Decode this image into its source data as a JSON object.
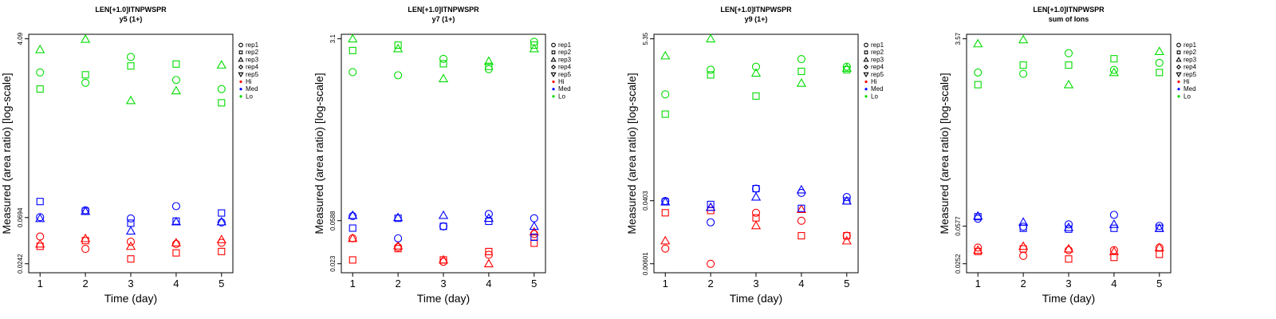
{
  "colors": {
    "Hi": "#ff0000",
    "Med": "#0000ff",
    "Lo": "#00dd00"
  },
  "chart_data": [
    {
      "type": "scatter",
      "title": "LEN[+1.0]ITNPWSPR",
      "subtitle": "y5 (1+)",
      "xlabel": "Time (day)",
      "ylabel": "Measured (area ratio) [log-scale]",
      "xlim": [
        1,
        5
      ],
      "ylim": [
        0.0242,
        4.09
      ],
      "log_y": true,
      "x_ticks": [
        "1",
        "2",
        "3",
        "4",
        "5"
      ],
      "y_ticks": [
        0.0242,
        0.0694,
        4.09
      ],
      "y_tick_labels": [
        "0.0242",
        "0.0694",
        "4.09"
      ],
      "legend": [
        "rep1",
        "rep2",
        "rep3",
        "rep4",
        "rep5",
        "Hi",
        "Med",
        "Lo"
      ],
      "legend_position": "right",
      "series": [
        {
          "name": "rep1",
          "shape": "circle",
          "group": "Hi",
          "x": [
            1,
            2,
            3,
            4,
            5
          ],
          "y": [
            0.045,
            0.034,
            0.04,
            0.038,
            0.039
          ]
        },
        {
          "name": "rep2",
          "shape": "square",
          "group": "Hi",
          "x": [
            1,
            2,
            3,
            4,
            5
          ],
          "y": [
            0.036,
            0.041,
            0.027,
            0.031,
            0.032
          ]
        },
        {
          "name": "rep3",
          "shape": "triangle",
          "group": "Hi",
          "x": [
            1,
            2,
            3,
            4,
            5
          ],
          "y": [
            0.038,
            0.043,
            0.036,
            0.039,
            0.042
          ]
        },
        {
          "name": "rep1",
          "shape": "circle",
          "group": "Med",
          "x": [
            1,
            2,
            3,
            4,
            5
          ],
          "y": [
            0.07,
            0.082,
            0.068,
            0.09,
            0.062
          ]
        },
        {
          "name": "rep2",
          "shape": "square",
          "group": "Med",
          "x": [
            1,
            2,
            3,
            4,
            5
          ],
          "y": [
            0.1,
            0.08,
            0.061,
            0.064,
            0.077
          ]
        },
        {
          "name": "rep3",
          "shape": "triangle",
          "group": "Med",
          "x": [
            1,
            2,
            3,
            4,
            5
          ],
          "y": [
            0.068,
            0.08,
            0.051,
            0.063,
            0.063
          ]
        },
        {
          "name": "rep1",
          "shape": "circle",
          "group": "Lo",
          "x": [
            1,
            2,
            3,
            4,
            5
          ],
          "y": [
            1.9,
            1.5,
            2.7,
            1.6,
            1.3
          ]
        },
        {
          "name": "rep2",
          "shape": "square",
          "group": "Lo",
          "x": [
            1,
            2,
            3,
            4,
            5
          ],
          "y": [
            1.3,
            1.8,
            2.2,
            2.3,
            0.95
          ]
        },
        {
          "name": "rep3",
          "shape": "triangle",
          "group": "Lo",
          "x": [
            1,
            2,
            3,
            4,
            5
          ],
          "y": [
            3.2,
            4.05,
            1.0,
            1.25,
            2.25
          ]
        }
      ]
    },
    {
      "type": "scatter",
      "title": "LEN[+1.0]ITNPWSPR",
      "subtitle": "y7 (1+)",
      "xlabel": "Time (day)",
      "ylabel": "Measured (area ratio) [log-scale]",
      "xlim": [
        1,
        5
      ],
      "ylim": [
        0.023,
        3.1
      ],
      "log_y": true,
      "x_ticks": [
        "1",
        "2",
        "3",
        "4",
        "5"
      ],
      "y_ticks": [
        0.023,
        0.0588,
        3.1
      ],
      "y_tick_labels": [
        "0.023",
        "0.0588",
        "3.1"
      ],
      "legend": [
        "rep1",
        "rep2",
        "rep3",
        "rep4",
        "rep5",
        "Hi",
        "Med",
        "Lo"
      ],
      "legend_position": "right",
      "series": [
        {
          "name": "rep1",
          "shape": "circle",
          "group": "Hi",
          "x": [
            1,
            2,
            3,
            4,
            5
          ],
          "y": [
            0.04,
            0.033,
            0.024,
            0.028,
            0.044
          ]
        },
        {
          "name": "rep2",
          "shape": "square",
          "group": "Hi",
          "x": [
            1,
            2,
            3,
            4,
            5
          ],
          "y": [
            0.025,
            0.032,
            0.025,
            0.03,
            0.036
          ]
        },
        {
          "name": "rep3",
          "shape": "triangle",
          "group": "Hi",
          "x": [
            1,
            2,
            3,
            4,
            5
          ],
          "y": [
            0.04,
            0.034,
            0.025,
            0.023,
            0.046
          ]
        },
        {
          "name": "rep1",
          "shape": "circle",
          "group": "Med",
          "x": [
            1,
            2,
            3,
            4,
            5
          ],
          "y": [
            0.065,
            0.04,
            0.052,
            0.068,
            0.062
          ]
        },
        {
          "name": "rep2",
          "shape": "square",
          "group": "Med",
          "x": [
            1,
            2,
            3,
            4,
            5
          ],
          "y": [
            0.05,
            0.062,
            0.052,
            0.058,
            0.041
          ]
        },
        {
          "name": "rep3",
          "shape": "triangle",
          "group": "Med",
          "x": [
            1,
            2,
            3,
            4,
            5
          ],
          "y": [
            0.066,
            0.063,
            0.066,
            0.062,
            0.052
          ]
        },
        {
          "name": "rep1",
          "shape": "circle",
          "group": "Lo",
          "x": [
            1,
            2,
            3,
            4,
            5
          ],
          "y": [
            1.5,
            1.4,
            2.0,
            1.6,
            2.9
          ]
        },
        {
          "name": "rep2",
          "shape": "square",
          "group": "Lo",
          "x": [
            1,
            2,
            3,
            4,
            5
          ],
          "y": [
            2.4,
            2.7,
            1.8,
            1.7,
            2.7
          ]
        },
        {
          "name": "rep3",
          "shape": "triangle",
          "group": "Lo",
          "x": [
            1,
            2,
            3,
            4,
            5
          ],
          "y": [
            3.1,
            2.5,
            1.3,
            1.9,
            2.5
          ]
        }
      ]
    },
    {
      "type": "scatter",
      "title": "LEN[+1.0]ITNPWSPR",
      "subtitle": "y9 (1+)",
      "xlabel": "Time (day)",
      "ylabel": "Measured (area ratio) [log-scale]",
      "xlim": [
        1,
        5
      ],
      "ylim": [
        0.00601,
        5.35
      ],
      "log_y": true,
      "x_ticks": [
        "1",
        "2",
        "3",
        "4",
        "5"
      ],
      "y_ticks": [
        0.00601,
        0.0403,
        5.35
      ],
      "y_tick_labels": [
        "0.00601",
        "0.0403",
        "5.35"
      ],
      "legend": [
        "rep1",
        "rep2",
        "rep3",
        "rep4",
        "rep5",
        "Hi",
        "Med",
        "Lo"
      ],
      "legend_position": "right",
      "series": [
        {
          "name": "rep1",
          "shape": "circle",
          "group": "Hi",
          "x": [
            1,
            2,
            3,
            4,
            5
          ],
          "y": [
            0.0095,
            0.006,
            0.028,
            0.022,
            0.014
          ]
        },
        {
          "name": "rep2",
          "shape": "square",
          "group": "Hi",
          "x": [
            1,
            2,
            3,
            4,
            5
          ],
          "y": [
            0.028,
            0.03,
            0.024,
            0.014,
            0.014
          ]
        },
        {
          "name": "rep3",
          "shape": "triangle",
          "group": "Hi",
          "x": [
            1,
            2,
            3,
            4,
            5
          ],
          "y": [
            0.012,
            0.033,
            0.019,
            0.031,
            0.012
          ]
        },
        {
          "name": "rep1",
          "shape": "circle",
          "group": "Med",
          "x": [
            1,
            2,
            3,
            4,
            5
          ],
          "y": [
            0.04,
            0.021,
            0.058,
            0.051,
            0.045
          ]
        },
        {
          "name": "rep2",
          "shape": "square",
          "group": "Med",
          "x": [
            1,
            2,
            3,
            4,
            5
          ],
          "y": [
            0.039,
            0.036,
            0.058,
            0.032,
            0.04
          ]
        },
        {
          "name": "rep3",
          "shape": "triangle",
          "group": "Med",
          "x": [
            1,
            2,
            3,
            4,
            5
          ],
          "y": [
            0.039,
            0.033,
            0.045,
            0.056,
            0.04
          ]
        },
        {
          "name": "rep1",
          "shape": "circle",
          "group": "Lo",
          "x": [
            1,
            2,
            3,
            4,
            5
          ],
          "y": [
            1.0,
            2.1,
            2.3,
            2.9,
            2.3
          ]
        },
        {
          "name": "rep2",
          "shape": "square",
          "group": "Lo",
          "x": [
            1,
            2,
            3,
            4,
            5
          ],
          "y": [
            0.55,
            1.8,
            0.95,
            2.0,
            2.1
          ]
        },
        {
          "name": "rep3",
          "shape": "triangle",
          "group": "Lo",
          "x": [
            1,
            2,
            3,
            4,
            5
          ],
          "y": [
            3.2,
            5.35,
            1.9,
            1.4,
            2.2
          ]
        }
      ]
    },
    {
      "type": "scatter",
      "title": "LEN[+1.0]ITNPWSPR",
      "subtitle": "sum of Ions",
      "xlabel": "Time (day)",
      "ylabel": "Measured (area ratio) [log-scale]",
      "xlim": [
        1,
        5
      ],
      "ylim": [
        0.0252,
        3.57
      ],
      "log_y": true,
      "x_ticks": [
        "1",
        "2",
        "3",
        "4",
        "5"
      ],
      "y_ticks": [
        0.0252,
        0.0577,
        3.57
      ],
      "y_tick_labels": [
        "0.0252",
        "0.0577",
        "3.57"
      ],
      "legend": [
        "rep1",
        "rep2",
        "rep3",
        "rep4",
        "rep5",
        "Hi",
        "Med",
        "Lo"
      ],
      "legend_position": "right",
      "series": [
        {
          "name": "rep1",
          "shape": "circle",
          "group": "Hi",
          "x": [
            1,
            2,
            3,
            4,
            5
          ],
          "y": [
            0.036,
            0.03,
            0.034,
            0.034,
            0.036
          ]
        },
        {
          "name": "rep2",
          "shape": "square",
          "group": "Hi",
          "x": [
            1,
            2,
            3,
            4,
            5
          ],
          "y": [
            0.033,
            0.035,
            0.028,
            0.029,
            0.031
          ]
        },
        {
          "name": "rep3",
          "shape": "triangle",
          "group": "Hi",
          "x": [
            1,
            2,
            3,
            4,
            5
          ],
          "y": [
            0.034,
            0.037,
            0.035,
            0.033,
            0.036
          ]
        },
        {
          "name": "rep1",
          "shape": "circle",
          "group": "Med",
          "x": [
            1,
            2,
            3,
            4,
            5
          ],
          "y": [
            0.068,
            0.057,
            0.06,
            0.074,
            0.058
          ]
        },
        {
          "name": "rep2",
          "shape": "square",
          "group": "Med",
          "x": [
            1,
            2,
            3,
            4,
            5
          ],
          "y": [
            0.071,
            0.055,
            0.054,
            0.055,
            0.055
          ]
        },
        {
          "name": "rep3",
          "shape": "triangle",
          "group": "Med",
          "x": [
            1,
            2,
            3,
            4,
            5
          ],
          "y": [
            0.072,
            0.063,
            0.056,
            0.06,
            0.055
          ]
        },
        {
          "name": "rep1",
          "shape": "circle",
          "group": "Lo",
          "x": [
            1,
            2,
            3,
            4,
            5
          ],
          "y": [
            1.7,
            1.65,
            2.6,
            1.8,
            2.1
          ]
        },
        {
          "name": "rep2",
          "shape": "square",
          "group": "Lo",
          "x": [
            1,
            2,
            3,
            4,
            5
          ],
          "y": [
            1.3,
            2.0,
            2.0,
            2.3,
            1.7
          ]
        },
        {
          "name": "rep3",
          "shape": "triangle",
          "group": "Lo",
          "x": [
            1,
            2,
            3,
            4,
            5
          ],
          "y": [
            3.2,
            3.5,
            1.3,
            1.7,
            2.7
          ]
        }
      ]
    }
  ]
}
